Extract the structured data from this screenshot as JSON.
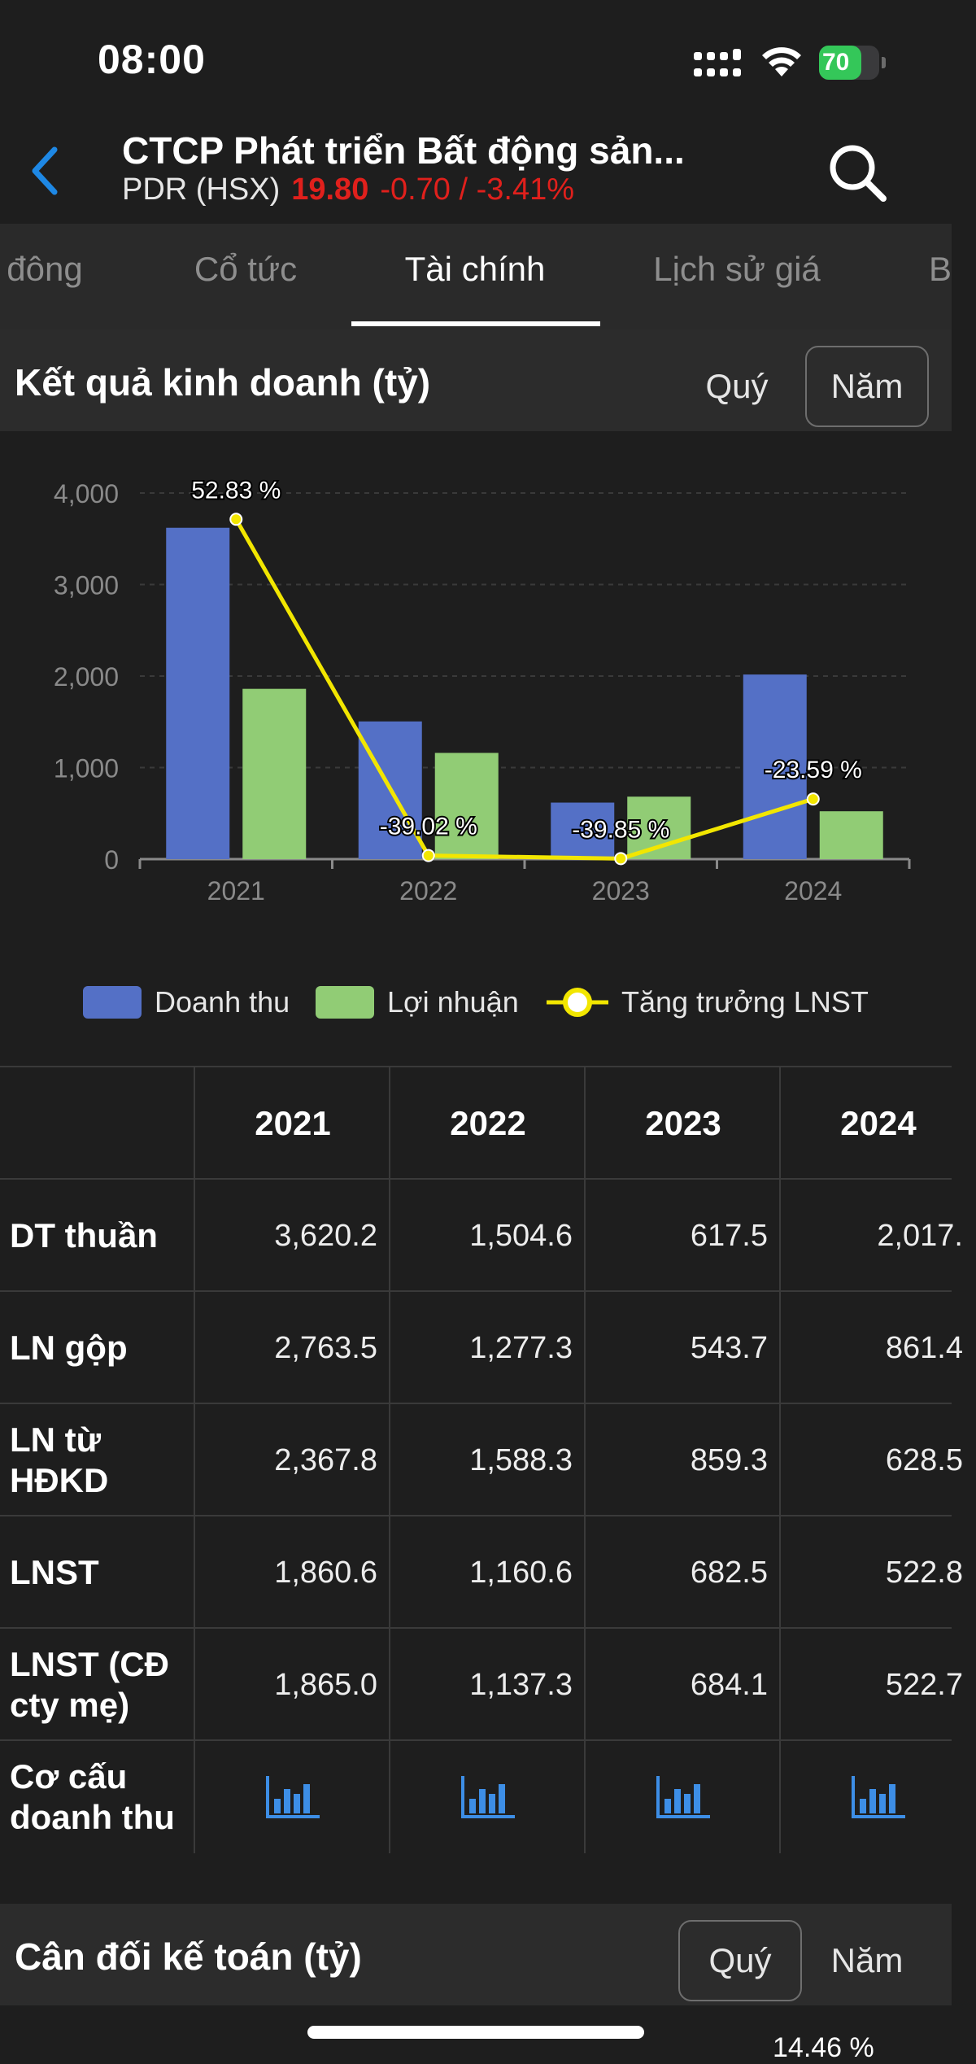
{
  "status_bar": {
    "time": "08:00",
    "battery_level": "70",
    "battery_fraction": 0.7
  },
  "header": {
    "company_name": "CTCP Phát triển Bất động sản...",
    "ticker": "PDR (HSX)",
    "price": "19.80",
    "change": "-0.70 / -3.41%"
  },
  "tabs": [
    {
      "label": "đông"
    },
    {
      "label": "Cổ tức"
    },
    {
      "label": "Tài chính",
      "active": true
    },
    {
      "label": "Lịch sử giá"
    },
    {
      "label": "B"
    }
  ],
  "income_section": {
    "title": "Kết quả kinh doanh (tỷ)",
    "quarter_label": "Quý",
    "year_label": "Năm",
    "selected": "Năm"
  },
  "chart_data": {
    "type": "bar",
    "categories": [
      "2021",
      "2022",
      "2023",
      "2024"
    ],
    "series": [
      {
        "name": "Doanh thu",
        "type": "bar",
        "color": "#5470c6",
        "values": [
          3620.2,
          1504.6,
          617.5,
          2017.0
        ]
      },
      {
        "name": "Lợi nhuận",
        "type": "bar",
        "color": "#91cc75",
        "values": [
          1860.6,
          1160.6,
          682.5,
          522.8
        ]
      },
      {
        "name": "Tăng trưởng LNST",
        "type": "line",
        "color": "#f2e600",
        "values": [
          52.83,
          -39.02,
          -39.85,
          -23.59
        ],
        "labels": [
          "52.83 %",
          "-39.02 %",
          "-39.85 %",
          "-23.59 %"
        ]
      }
    ],
    "y_ticks": [
      "0",
      "1,000",
      "2,000",
      "3,000",
      "4,000"
    ],
    "ylim": [
      0,
      4000
    ],
    "growth_ylim": [
      -40,
      60
    ],
    "grid": true,
    "legend_position": "bottom"
  },
  "table": {
    "years": [
      "2021",
      "2022",
      "2023",
      "2024"
    ],
    "rows": [
      {
        "label": "DT thuần",
        "values": [
          "3,620.2",
          "1,504.6",
          "617.5",
          "2,017."
        ]
      },
      {
        "label": "LN gộp",
        "values": [
          "2,763.5",
          "1,277.3",
          "543.7",
          "861.4"
        ]
      },
      {
        "label": "LN từ HĐKD",
        "values": [
          "2,367.8",
          "1,588.3",
          "859.3",
          "628.5"
        ]
      },
      {
        "label": "LNST",
        "values": [
          "1,860.6",
          "1,160.6",
          "682.5",
          "522.8"
        ]
      },
      {
        "label": "LNST (CĐ cty mẹ)",
        "values": [
          "1,865.0",
          "1,137.3",
          "684.1",
          "522.7"
        ]
      }
    ],
    "structure_label": "Cơ cấu doanh thu",
    "structure_icon": "bar-chart-icon",
    "icon_color": "#3d8ee6"
  },
  "balance_section": {
    "title": "Cân đối kế toán (tỷ)",
    "quarter_label": "Quý",
    "year_label": "Năm",
    "selected": "Quý"
  },
  "partial_label": "14.46 %",
  "colors": {
    "accent": "#1e88e5",
    "negative": "#e0201c",
    "background": "#1e1e1e"
  }
}
